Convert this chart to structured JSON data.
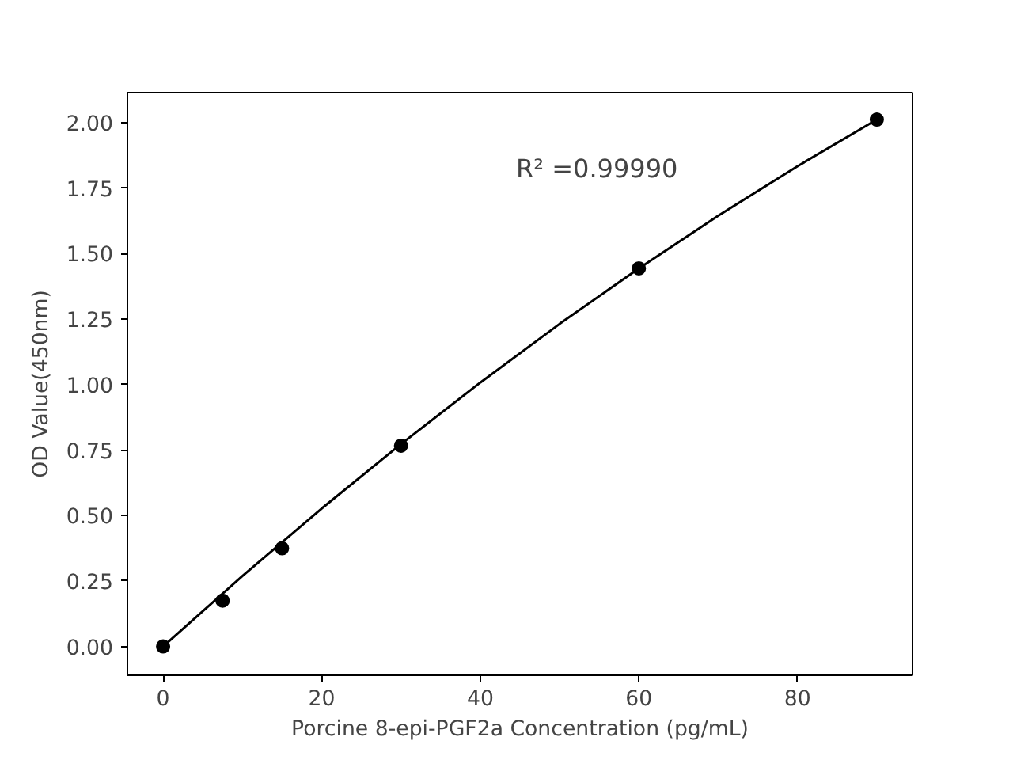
{
  "chart_data": {
    "type": "scatter",
    "xlabel": "Porcine 8-epi-PGF2a Concentration (pg/mL)",
    "ylabel": "OD Value(450nm)",
    "xlim": [
      -4.5,
      94.5
    ],
    "ylim": [
      -0.11,
      2.115
    ],
    "xticks": [
      0,
      20,
      40,
      60,
      80
    ],
    "yticks": [
      {
        "value": 0,
        "label": "0.00"
      },
      {
        "value": 0.25,
        "label": "0.25"
      },
      {
        "value": 0.5,
        "label": "0.50"
      },
      {
        "value": 0.75,
        "label": "0.75"
      },
      {
        "value": 1,
        "label": "1.00"
      },
      {
        "value": 1.25,
        "label": "1.25"
      },
      {
        "value": 1.5,
        "label": "1.50"
      },
      {
        "value": 1.75,
        "label": "1.75"
      },
      {
        "value": 2,
        "label": "2.00"
      }
    ],
    "grid": false,
    "annotations": [
      "R² =0.99990"
    ],
    "series": [
      {
        "color": "#000000",
        "marker": "circle",
        "x": [
          0,
          7.5,
          15,
          30,
          60,
          90
        ],
        "values": [
          0,
          0.175,
          0.375,
          0.767,
          1.444,
          2.012
        ]
      },
      {
        "type": "line",
        "color": "#000000",
        "line_style": "solid",
        "x": [
          0,
          10,
          20,
          30,
          40,
          50,
          60,
          70,
          80,
          90
        ],
        "values": [
          0,
          0.269,
          0.527,
          0.773,
          1.008,
          1.232,
          1.444,
          1.645,
          1.834,
          2.012
        ]
      }
    ]
  }
}
